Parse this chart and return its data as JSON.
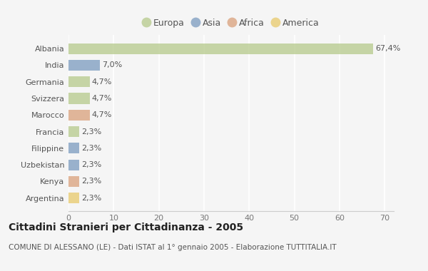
{
  "countries": [
    "Albania",
    "India",
    "Germania",
    "Svizzera",
    "Marocco",
    "Francia",
    "Filippine",
    "Uzbekistan",
    "Kenya",
    "Argentina"
  ],
  "values": [
    67.4,
    7.0,
    4.7,
    4.7,
    4.7,
    2.3,
    2.3,
    2.3,
    2.3,
    2.3
  ],
  "labels": [
    "67,4%",
    "7,0%",
    "4,7%",
    "4,7%",
    "4,7%",
    "2,3%",
    "2,3%",
    "2,3%",
    "2,3%",
    "2,3%"
  ],
  "colors": [
    "#b5c98a",
    "#7b9bbf",
    "#b5c98a",
    "#b5c98a",
    "#d9a07a",
    "#b5c98a",
    "#7b9bbf",
    "#7b9bbf",
    "#d9a07a",
    "#e8c96a"
  ],
  "legend_labels": [
    "Europa",
    "Asia",
    "Africa",
    "America"
  ],
  "legend_colors": [
    "#b5c98a",
    "#7b9bbf",
    "#d9a07a",
    "#e8c96a"
  ],
  "title": "Cittadini Stranieri per Cittadinanza - 2005",
  "subtitle": "COMUNE DI ALESSANO (LE) - Dati ISTAT al 1° gennaio 2005 - Elaborazione TUTTITALIA.IT",
  "xlim": [
    0,
    72
  ],
  "xticks": [
    0,
    10,
    20,
    30,
    40,
    50,
    60,
    70
  ],
  "bg_color": "#f5f5f5",
  "plot_bg": "#f5f5f5",
  "grid_color": "#ffffff",
  "bar_height": 0.65,
  "label_fontsize": 8,
  "ytick_fontsize": 8,
  "xtick_fontsize": 8
}
